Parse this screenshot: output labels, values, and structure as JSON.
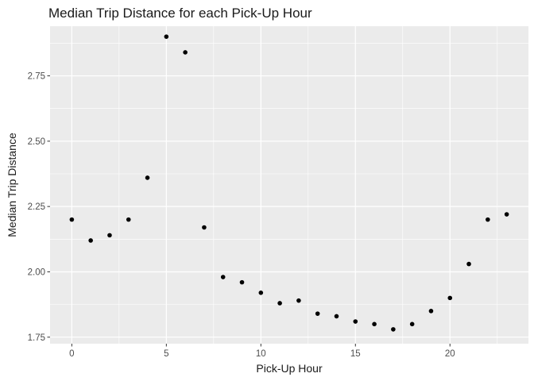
{
  "chart_data": {
    "type": "scatter",
    "title": "Median Trip Distance for each Pick-Up Hour",
    "xlabel": "Pick-Up Hour",
    "ylabel": "Median Trip Distance",
    "xlim": [
      -1.15,
      24.15
    ],
    "ylim": [
      1.725,
      2.94
    ],
    "x_ticks": [
      0,
      5,
      10,
      15,
      20
    ],
    "y_ticks": [
      1.75,
      2.0,
      2.25,
      2.5,
      2.75
    ],
    "x_tick_labels": [
      "0",
      "5",
      "10",
      "15",
      "20"
    ],
    "y_tick_labels": [
      "1.75",
      "2.00",
      "2.25",
      "2.50",
      "2.75"
    ],
    "grid": true,
    "panel_background": "#ebebeb",
    "grid_color": "#ffffff",
    "point_color": "#000000",
    "series": [
      {
        "x": [
          0,
          1,
          2,
          3,
          4,
          5,
          6,
          7,
          8,
          9,
          10,
          11,
          12,
          13,
          14,
          15,
          16,
          17,
          18,
          19,
          20,
          21,
          22,
          23
        ],
        "y": [
          2.2,
          2.12,
          2.14,
          2.2,
          2.36,
          2.9,
          2.84,
          2.17,
          1.98,
          1.96,
          1.92,
          1.88,
          1.89,
          1.84,
          1.83,
          1.81,
          1.8,
          1.78,
          1.8,
          1.85,
          1.9,
          2.03,
          2.2,
          2.22
        ]
      }
    ]
  }
}
